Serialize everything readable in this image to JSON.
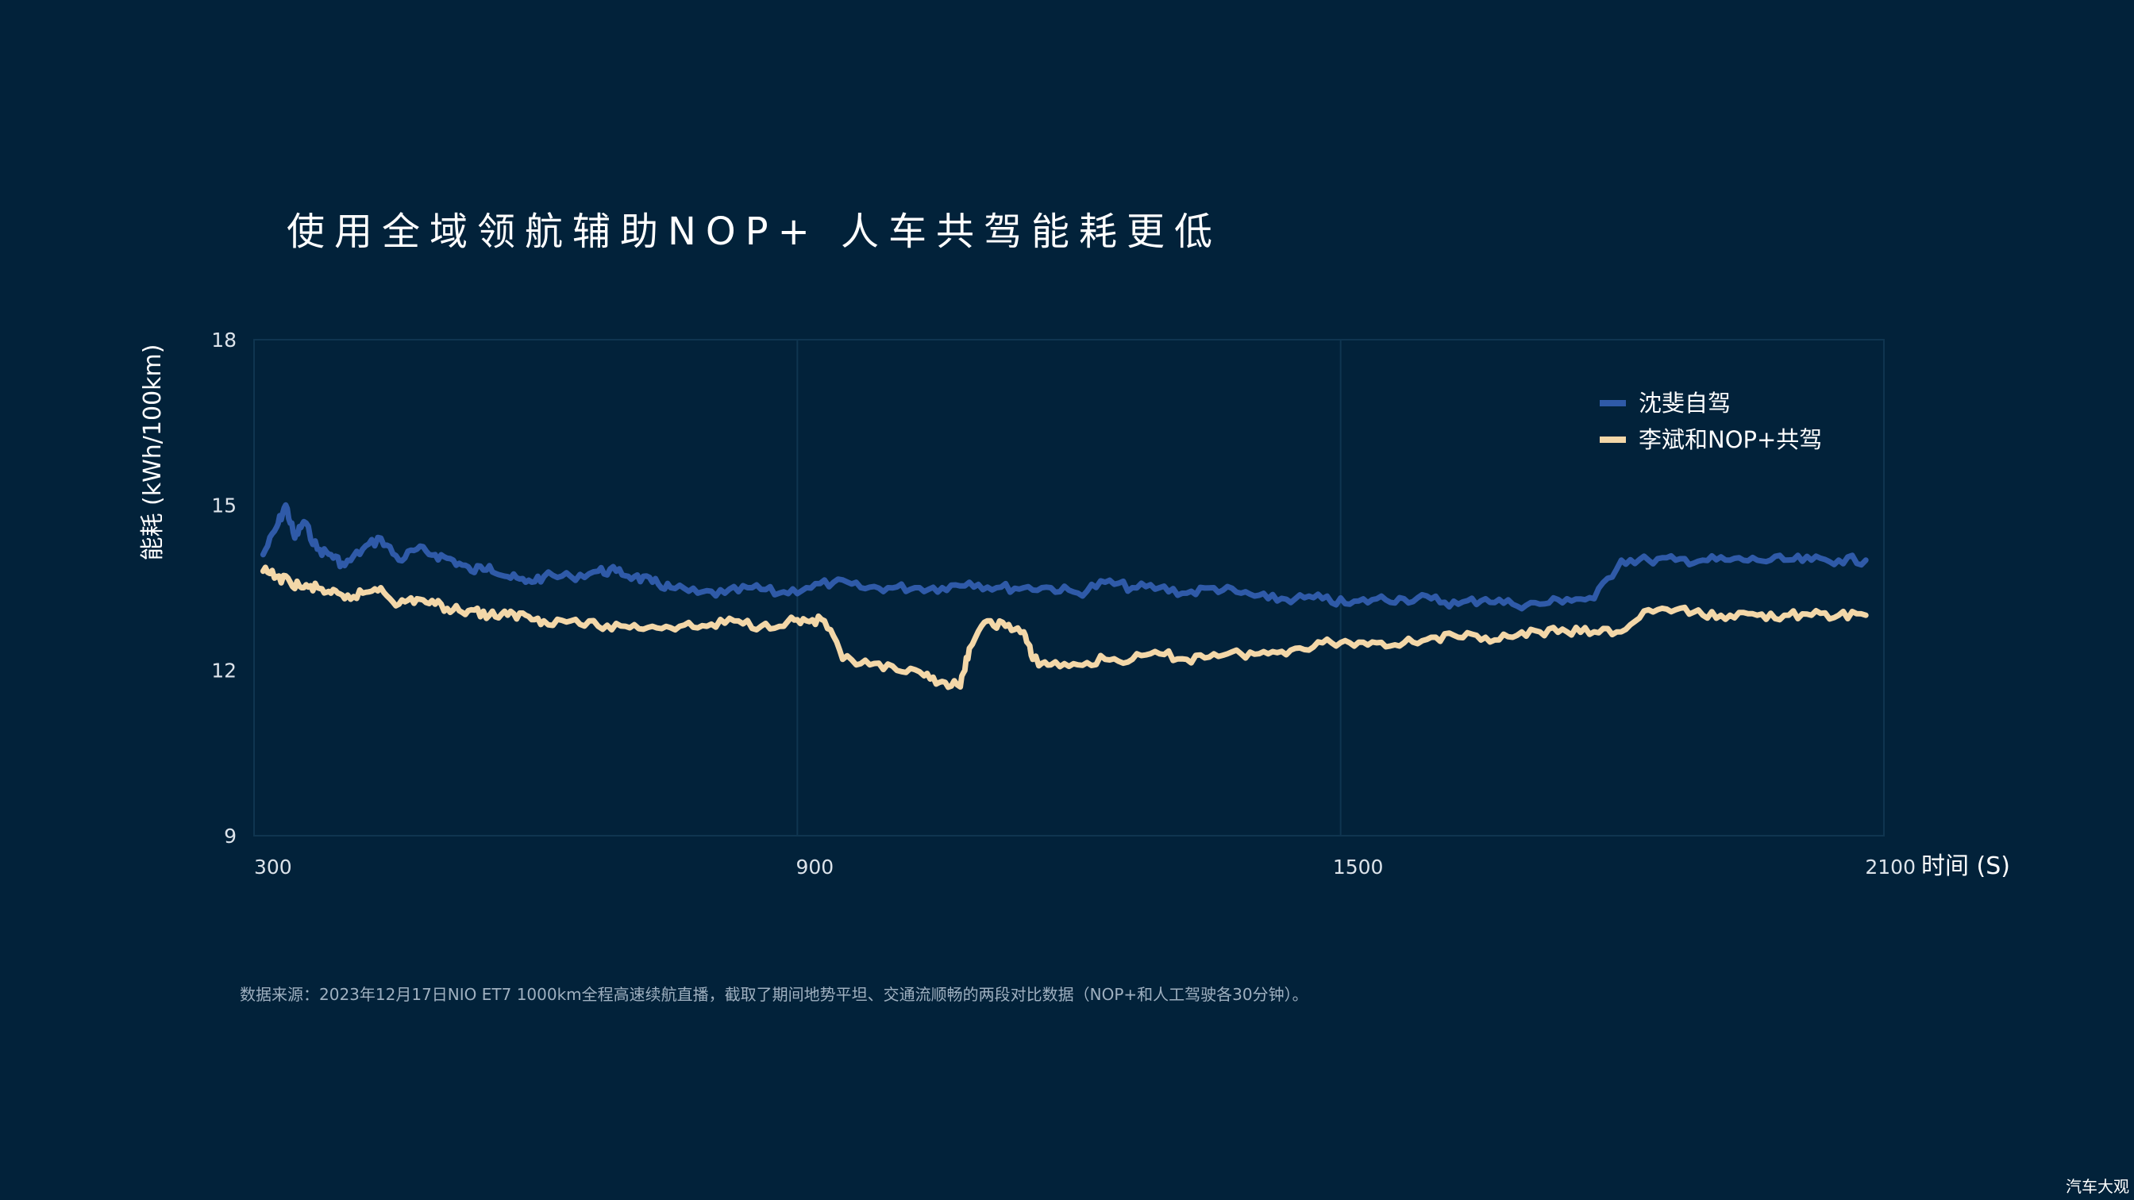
{
  "chart_data": {
    "type": "line",
    "title": "使用全域领航辅助NOP+ 人车共驾能耗更低",
    "xlabel": "时间 (S)",
    "ylabel": "能耗 (kWh/100km)",
    "xlim": [
      300,
      2100
    ],
    "ylim": [
      9,
      18
    ],
    "xticks": [
      "300",
      "900",
      "1500",
      "2100"
    ],
    "yticks": [
      "18",
      "15",
      "12",
      "9"
    ],
    "grid": "vertical",
    "legend": "top-right",
    "series": [
      {
        "name": "沈斐自驾",
        "color": "#2f5aa8",
        "x": [
          310,
          325,
          335,
          345,
          355,
          370,
          385,
          400,
          420,
          440,
          460,
          480,
          500,
          520,
          540,
          560,
          580,
          600,
          620,
          650,
          680,
          700,
          720,
          740,
          760,
          790,
          820,
          850,
          880,
          910,
          940,
          970,
          1000,
          1030,
          1060,
          1090,
          1120,
          1150,
          1180,
          1210,
          1240,
          1270,
          1300,
          1330,
          1360,
          1390,
          1420,
          1450,
          1480,
          1510,
          1540,
          1570,
          1600,
          1630,
          1660,
          1690,
          1720,
          1750,
          1780,
          1810,
          1840,
          1870,
          1900,
          1930,
          1960,
          1990,
          2020,
          2050,
          2080
        ],
        "values": [
          14.1,
          14.6,
          15.0,
          14.4,
          14.7,
          14.2,
          14.1,
          13.9,
          14.2,
          14.4,
          14.0,
          14.2,
          14.1,
          14.0,
          13.8,
          13.9,
          13.7,
          13.6,
          13.7,
          13.7,
          13.8,
          13.8,
          13.7,
          13.6,
          13.5,
          13.4,
          13.4,
          13.5,
          13.4,
          13.5,
          13.6,
          13.5,
          13.5,
          13.5,
          13.5,
          13.6,
          13.5,
          13.5,
          13.5,
          13.4,
          13.6,
          13.5,
          13.5,
          13.4,
          13.5,
          13.4,
          13.3,
          13.3,
          13.3,
          13.2,
          13.3,
          13.3,
          13.3,
          13.2,
          13.3,
          13.2,
          13.2,
          13.3,
          13.3,
          14.0,
          14.0,
          14.0,
          14.0,
          14.0,
          14.0,
          14.0,
          14.0,
          14.0,
          14.0
        ]
      },
      {
        "name": "李斌和NOP+共驾",
        "color": "#f3d7a8",
        "x": [
          310,
          325,
          340,
          355,
          370,
          385,
          400,
          420,
          440,
          460,
          480,
          500,
          520,
          540,
          560,
          580,
          600,
          620,
          650,
          680,
          710,
          740,
          770,
          800,
          830,
          860,
          890,
          910,
          930,
          950,
          980,
          1010,
          1040,
          1060,
          1080,
          1090,
          1110,
          1130,
          1150,
          1160,
          1180,
          1210,
          1240,
          1270,
          1300,
          1330,
          1360,
          1390,
          1420,
          1450,
          1480,
          1510,
          1540,
          1570,
          1600,
          1630,
          1660,
          1690,
          1720,
          1750,
          1780,
          1810,
          1840,
          1870,
          1900,
          1930,
          1960,
          1990,
          2020,
          2050,
          2080
        ],
        "values": [
          13.8,
          13.7,
          13.6,
          13.5,
          13.5,
          13.4,
          13.3,
          13.4,
          13.5,
          13.2,
          13.3,
          13.2,
          13.1,
          13.1,
          13.0,
          13.0,
          13.0,
          12.9,
          12.9,
          12.8,
          12.8,
          12.8,
          12.8,
          12.8,
          12.9,
          12.8,
          12.9,
          12.9,
          12.9,
          12.2,
          12.1,
          12.0,
          11.9,
          11.8,
          11.7,
          12.4,
          12.9,
          12.8,
          12.7,
          12.2,
          12.1,
          12.1,
          12.2,
          12.2,
          12.3,
          12.2,
          12.3,
          12.3,
          12.3,
          12.4,
          12.5,
          12.5,
          12.5,
          12.5,
          12.6,
          12.6,
          12.6,
          12.6,
          12.7,
          12.7,
          12.7,
          12.7,
          13.1,
          13.1,
          13.0,
          13.0,
          13.0,
          13.0,
          13.0,
          13.0,
          13.0
        ]
      }
    ],
    "source": "数据来源：2023年12月17日NIO ET7 1000km全程高速续航直播，截取了期间地势平坦、交通流顺畅的两段对比数据（NOP+和人工驾驶各30分钟）。"
  },
  "watermark": "汽车大观"
}
